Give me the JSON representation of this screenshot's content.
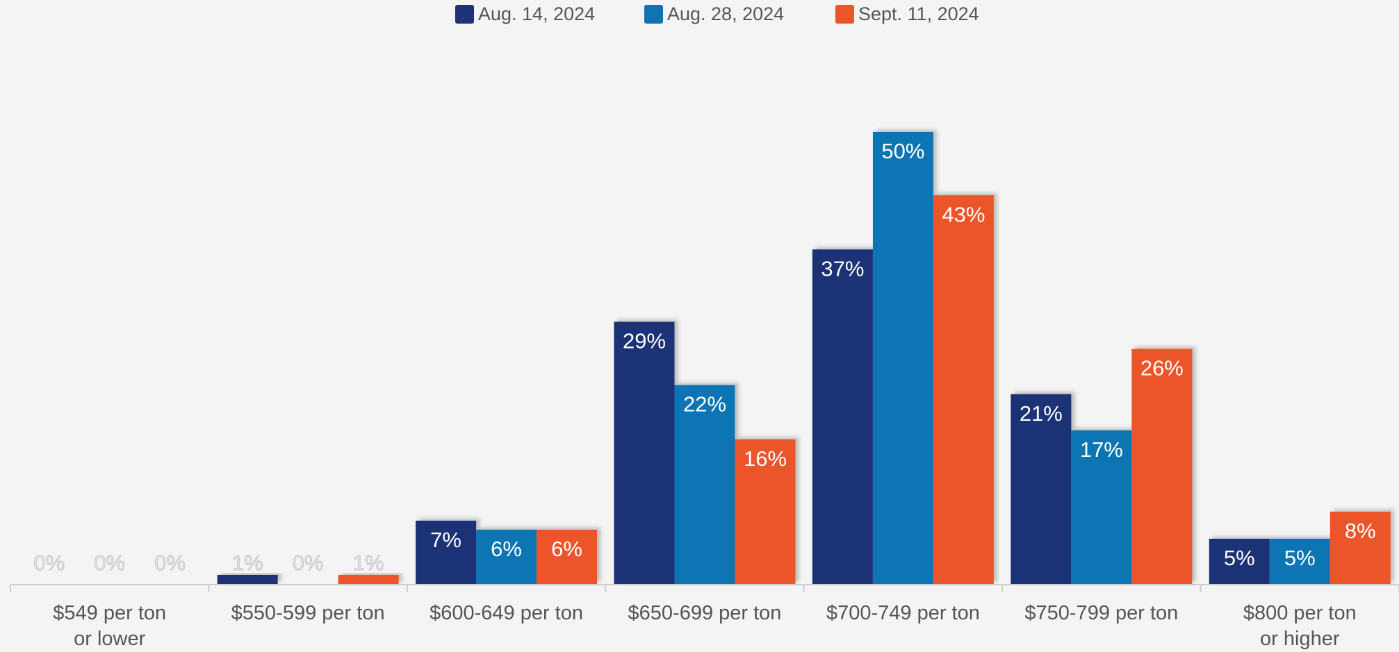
{
  "chart_data": {
    "type": "bar",
    "categories": [
      "$549 per ton\nor lower",
      "$550-599 per ton",
      "$600-649 per ton",
      "$650-699 per ton",
      "$700-749 per ton",
      "$750-799 per ton",
      "$800 per ton\nor higher"
    ],
    "series": [
      {
        "name": "Aug. 14, 2024",
        "color": "#1f3177",
        "values": [
          0,
          1,
          7,
          29,
          37,
          21,
          5
        ],
        "value_labels": [
          "0%",
          "1%",
          "7%",
          "29%",
          "37%",
          "21%",
          "5%"
        ]
      },
      {
        "name": "Aug. 28, 2024",
        "color": "#1074b4",
        "values": [
          0,
          0,
          6,
          22,
          50,
          17,
          5
        ],
        "value_labels": [
          "0%",
          "0%",
          "6%",
          "22%",
          "50%",
          "17%",
          "5%"
        ]
      },
      {
        "name": "Sept. 11, 2024",
        "color": "#ec5529",
        "values": [
          0,
          1,
          6,
          16,
          43,
          26,
          8
        ],
        "value_labels": [
          "0%",
          "1%",
          "6%",
          "16%",
          "43%",
          "26%",
          "8%"
        ]
      }
    ],
    "legend": "top"
  }
}
